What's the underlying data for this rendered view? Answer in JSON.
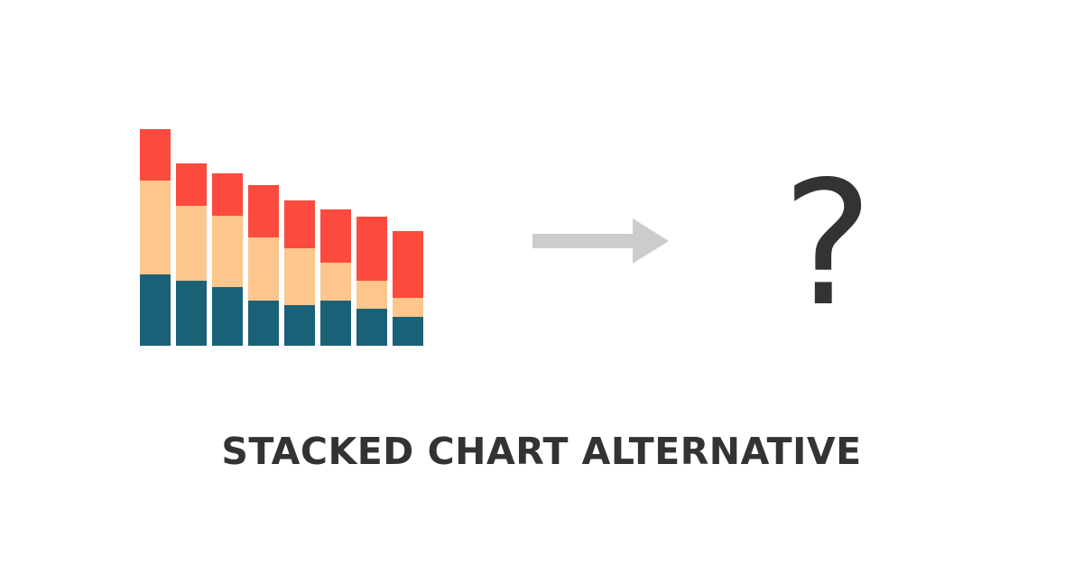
{
  "caption": "STACKED CHART ALTERNATIVE",
  "symbol": "?",
  "colors": {
    "bottom": "#1a6178",
    "middle": "#fcc68c",
    "top": "#fc4a3f",
    "arrow": "#cccccc",
    "symbol": "#333333",
    "caption": "#333333"
  },
  "chart_data": {
    "type": "bar",
    "stacked": true,
    "ylim": [
      0,
      240
    ],
    "grid": false,
    "axes_visible": false,
    "legend": "none",
    "series": [
      {
        "values": [
          79,
          72,
          65,
          50,
          45,
          50,
          41,
          32
        ]
      },
      {
        "values": [
          104,
          83,
          79,
          70,
          63,
          42,
          31,
          21
        ]
      },
      {
        "values": [
          57,
          47,
          47,
          58,
          53,
          59,
          71,
          74
        ]
      }
    ]
  }
}
